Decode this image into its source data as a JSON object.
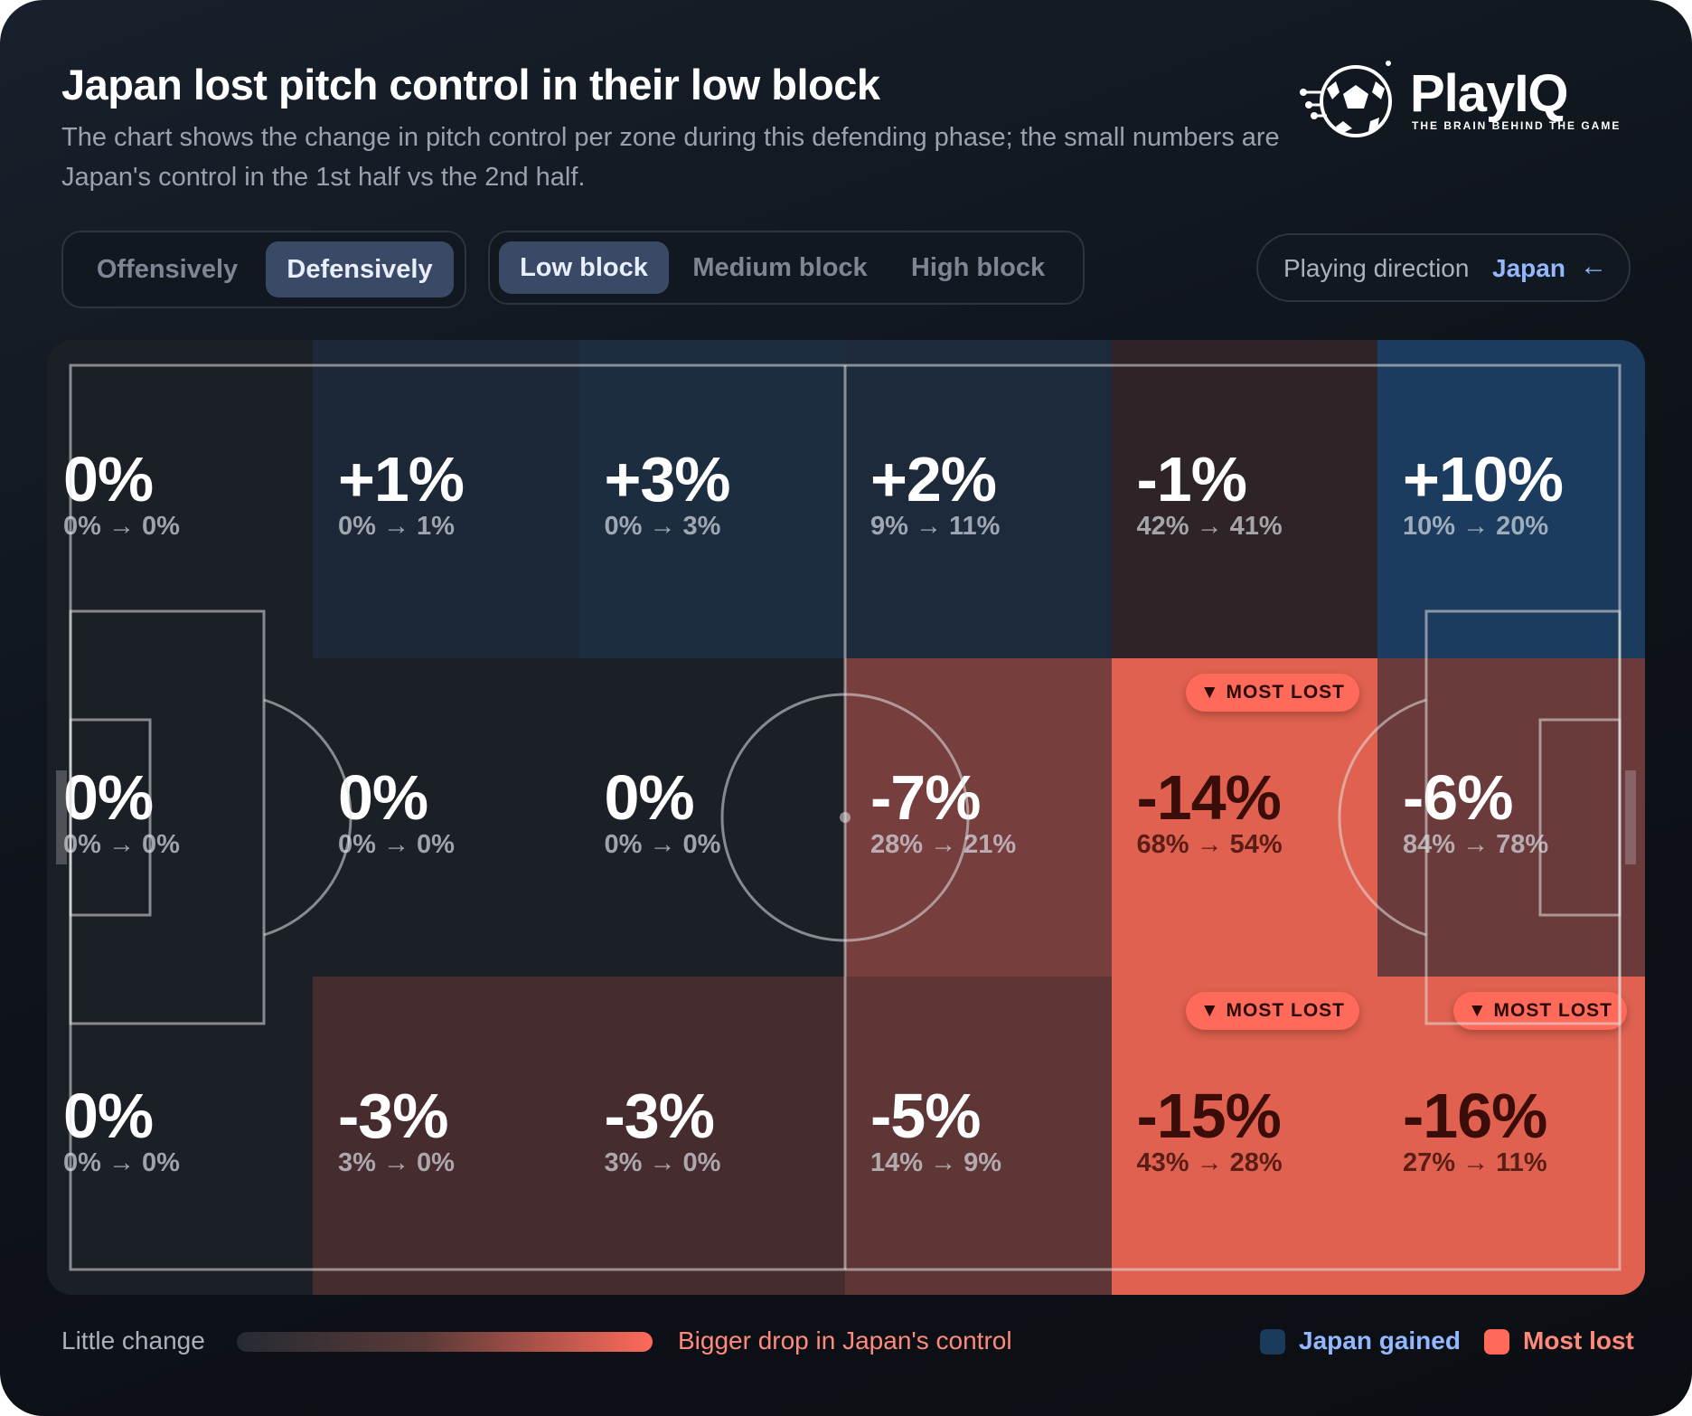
{
  "header": {
    "title": "Japan lost pitch control in their low block",
    "subtitle": "The chart shows the change in pitch control per zone during this defending phase; the small numbers are Japan's control in the 1st half vs the 2nd half."
  },
  "logo": {
    "name": "PlayIQ",
    "tagline": "THE BRAIN BEHIND THE GAME"
  },
  "mode_toggle": {
    "options": [
      "Offensively",
      "Defensively"
    ],
    "selected": "Defensively"
  },
  "block_toggle": {
    "options": [
      "Low block",
      "Medium block",
      "High block"
    ],
    "selected": "Low block"
  },
  "direction": {
    "label": "Playing direction",
    "team": "Japan",
    "arrow": "←"
  },
  "colors": {
    "gained": "#1b3b5c",
    "most_lost": "#ff6a5a",
    "background": "#0f141b"
  },
  "chart_data": {
    "type": "heatmap",
    "title": "Japan lost pitch control in their low block",
    "columns": 6,
    "rows": 3,
    "badge_label": "▼ MOST LOST",
    "zones": [
      [
        {
          "change": "0%",
          "first": "0%",
          "second": "0%",
          "value": 0
        },
        {
          "change": "+1%",
          "first": "0%",
          "second": "1%",
          "value": 1
        },
        {
          "change": "+3%",
          "first": "0%",
          "second": "3%",
          "value": 3
        },
        {
          "change": "+2%",
          "first": "9%",
          "second": "11%",
          "value": 2
        },
        {
          "change": "-1%",
          "first": "42%",
          "second": "41%",
          "value": -1
        },
        {
          "change": "+10%",
          "first": "10%",
          "second": "20%",
          "value": 10
        }
      ],
      [
        {
          "change": "0%",
          "first": "0%",
          "second": "0%",
          "value": 0
        },
        {
          "change": "0%",
          "first": "0%",
          "second": "0%",
          "value": 0
        },
        {
          "change": "0%",
          "first": "0%",
          "second": "0%",
          "value": 0
        },
        {
          "change": "-7%",
          "first": "28%",
          "second": "21%",
          "value": -7
        },
        {
          "change": "-14%",
          "first": "68%",
          "second": "54%",
          "value": -14,
          "most_lost": true
        },
        {
          "change": "-6%",
          "first": "84%",
          "second": "78%",
          "value": -6
        }
      ],
      [
        {
          "change": "0%",
          "first": "0%",
          "second": "0%",
          "value": 0
        },
        {
          "change": "-3%",
          "first": "3%",
          "second": "0%",
          "value": -3
        },
        {
          "change": "-3%",
          "first": "3%",
          "second": "0%",
          "value": -3
        },
        {
          "change": "-5%",
          "first": "14%",
          "second": "9%",
          "value": -5
        },
        {
          "change": "-15%",
          "first": "43%",
          "second": "28%",
          "value": -15,
          "most_lost": true
        },
        {
          "change": "-16%",
          "first": "27%",
          "second": "11%",
          "value": -16,
          "most_lost": true
        }
      ]
    ]
  },
  "legend": {
    "left": "Little change",
    "right": "Bigger drop in Japan's control",
    "gained": "Japan gained",
    "most_lost": "Most lost"
  }
}
